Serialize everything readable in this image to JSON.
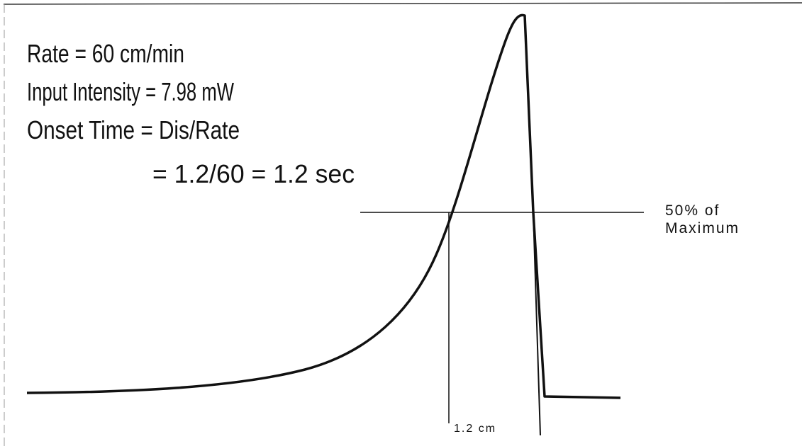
{
  "annotations": [
    "Rate = 60 cm/min",
    "Input Intensity = 7.98 mW",
    "Onset Time = Dis/Rate",
    "= 1.2/60 = 1.2 sec"
  ],
  "threshold_label": [
    "50% of",
    "Maximum"
  ],
  "width_label": "1.2 cm"
}
